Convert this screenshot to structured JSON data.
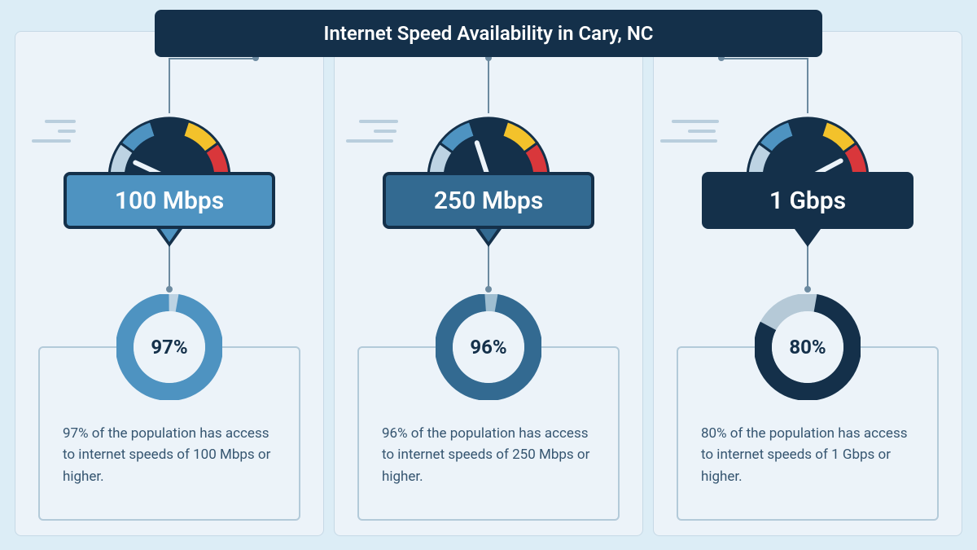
{
  "title": "Internet Speed Availability in Cary, NC",
  "colors": {
    "page_bg": "#dcedf6",
    "panel_bg": "#ecf3f9",
    "title_bg": "#14304a",
    "stroke_dark": "#14304a",
    "connector": "#6c8aa0",
    "gauge_segments": [
      "#bdd3e3",
      "#4e93c1",
      "#14304a",
      "#f3c22b",
      "#d9373b"
    ],
    "motion_line": "#b9cedd"
  },
  "panels": [
    {
      "speed_label": "100 Mbps",
      "pill_bg": "#4e93c1",
      "percent": 97,
      "percent_label": "97%",
      "ring_fg": "#4e93c1",
      "ring_bg": "#bdd3e3",
      "text_color": "#14304a",
      "needle_angle": -65,
      "description": "97% of the population has access to internet speeds of 100 Mbps or higher."
    },
    {
      "speed_label": "250 Mbps",
      "pill_bg": "#336a91",
      "percent": 96,
      "percent_label": "96%",
      "ring_fg": "#336a91",
      "ring_bg": "#9fbed1",
      "text_color": "#14304a",
      "needle_angle": -18,
      "description": "96% of the population has access to internet speeds of 250 Mbps or higher."
    },
    {
      "speed_label": "1 Gbps",
      "pill_bg": "#14304a",
      "percent": 80,
      "percent_label": "80%",
      "ring_fg": "#14304a",
      "ring_bg": "#b5c9d7",
      "text_color": "#14304a",
      "needle_angle": 62,
      "description": "80% of the population has access to internet speeds of 1 Gbps or higher."
    }
  ]
}
